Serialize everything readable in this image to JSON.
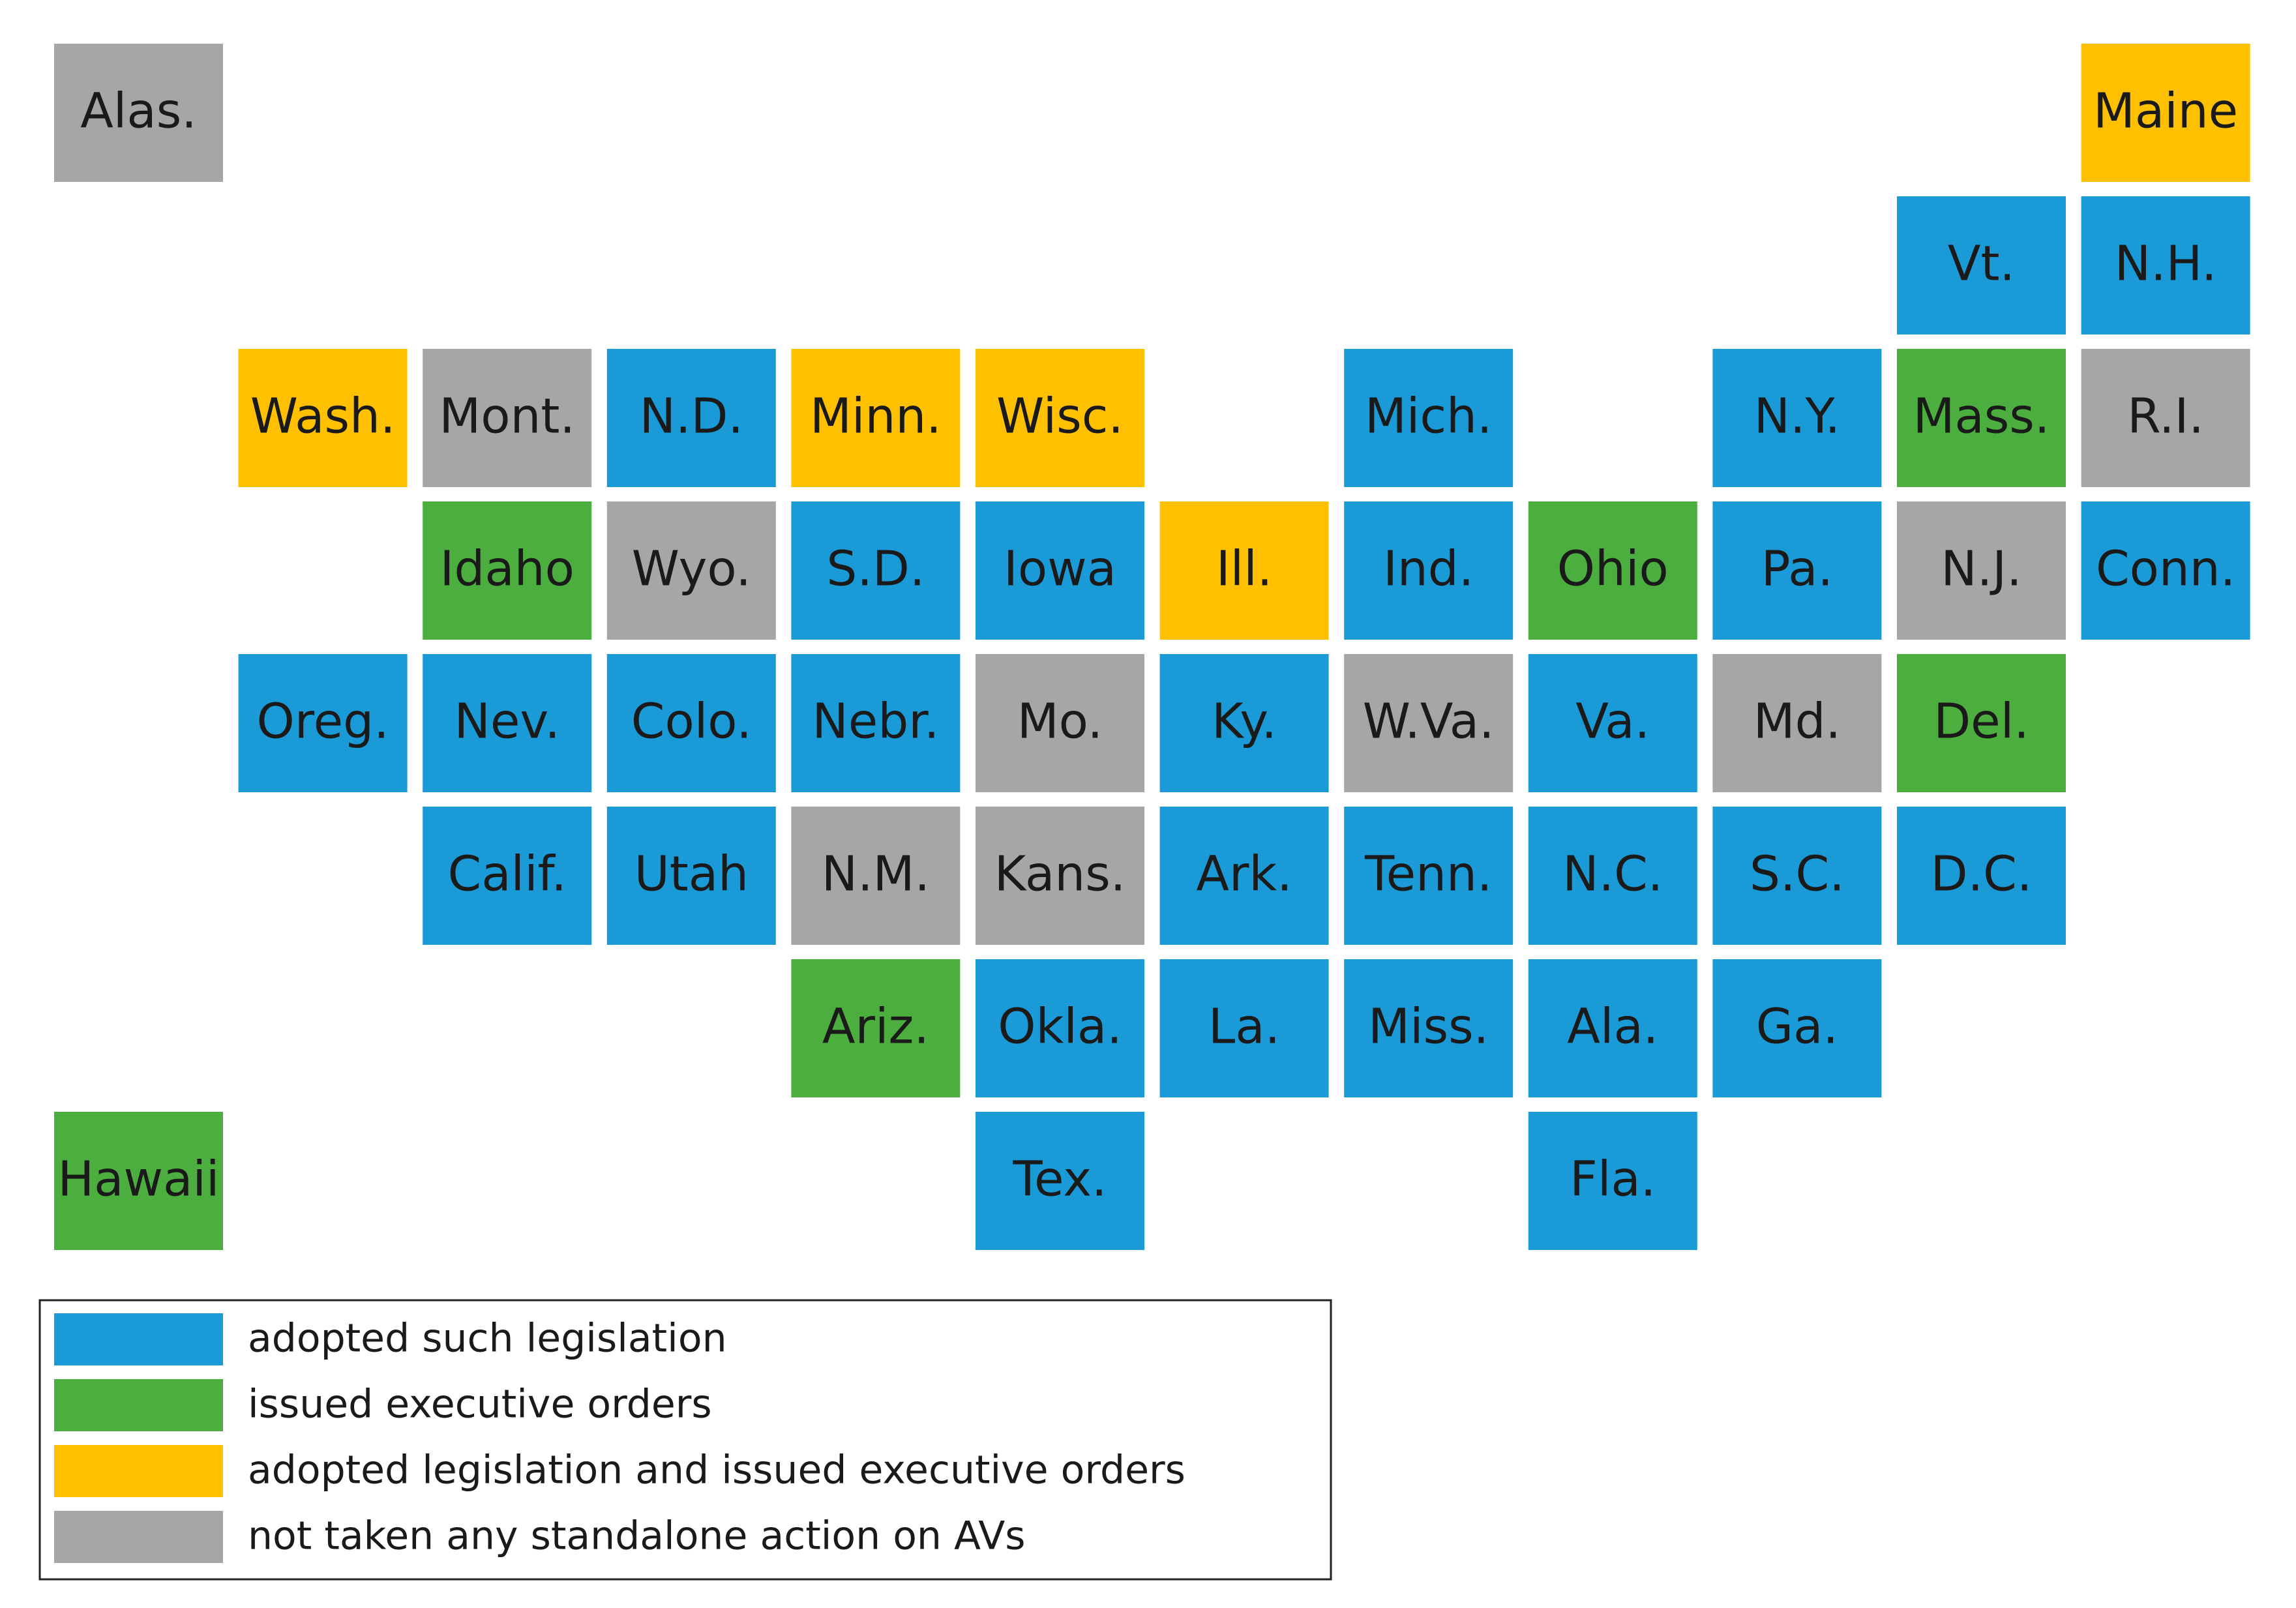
{
  "tiles": [
    {
      "label": "Alas.",
      "color": "#a6a6a6"
    },
    {
      "label": "Maine",
      "color": "#ffc000"
    },
    {
      "label": "Vt.",
      "color": "#1a9ad6"
    },
    {
      "label": "N.H.",
      "color": "#1a9ad6"
    },
    {
      "label": "Wash.",
      "color": "#ffc000"
    },
    {
      "label": "Mont.",
      "color": "#a6a6a6"
    },
    {
      "label": "N.D.",
      "color": "#1a9ad6"
    },
    {
      "label": "Minn.",
      "color": "#ffc000"
    },
    {
      "label": "Wisc.",
      "color": "#ffc000"
    },
    {
      "label": "Mich.",
      "color": "#1a9ad6"
    },
    {
      "label": "N.Y.",
      "color": "#1a9ad6"
    },
    {
      "label": "Mass.",
      "color": "#4cae3e"
    },
    {
      "label": "R.I.",
      "color": "#a6a6a6"
    },
    {
      "label": "Idaho",
      "color": "#4cae3e"
    },
    {
      "label": "Wyo.",
      "color": "#a6a6a6"
    },
    {
      "label": "S.D.",
      "color": "#1a9ad6"
    },
    {
      "label": "Iowa",
      "color": "#1a9ad6"
    },
    {
      "label": "Ill.",
      "color": "#ffc000"
    },
    {
      "label": "Ind.",
      "color": "#1a9ad6"
    },
    {
      "label": "Ohio",
      "color": "#4cae3e"
    },
    {
      "label": "Pa.",
      "color": "#1a9ad6"
    },
    {
      "label": "N.J.",
      "color": "#a6a6a6"
    },
    {
      "label": "Conn.",
      "color": "#1a9ad6"
    },
    {
      "label": "Oreg.",
      "color": "#1a9ad6"
    },
    {
      "label": "Nev.",
      "color": "#1a9ad6"
    },
    {
      "label": "Colo.",
      "color": "#1a9ad6"
    },
    {
      "label": "Nebr.",
      "color": "#1a9ad6"
    },
    {
      "label": "Mo.",
      "color": "#a6a6a6"
    },
    {
      "label": "Ky.",
      "color": "#1a9ad6"
    },
    {
      "label": "W.Va.",
      "color": "#a6a6a6"
    },
    {
      "label": "Va.",
      "color": "#1a9ad6"
    },
    {
      "label": "Md.",
      "color": "#a6a6a6"
    },
    {
      "label": "Del.",
      "color": "#4cae3e"
    },
    {
      "label": "Calif.",
      "color": "#1a9ad6"
    },
    {
      "label": "Utah",
      "color": "#1a9ad6"
    },
    {
      "label": "N.M.",
      "color": "#a6a6a6"
    },
    {
      "label": "Kans.",
      "color": "#a6a6a6"
    },
    {
      "label": "Ark.",
      "color": "#1a9ad6"
    },
    {
      "label": "Tenn.",
      "color": "#1a9ad6"
    },
    {
      "label": "N.C.",
      "color": "#1a9ad6"
    },
    {
      "label": "S.C.",
      "color": "#1a9ad6"
    },
    {
      "label": "D.C.",
      "color": "#1a9ad6"
    },
    {
      "label": "Ariz.",
      "color": "#4cae3e"
    },
    {
      "label": "Okla.",
      "color": "#1a9ad6"
    },
    {
      "label": "La.",
      "color": "#1a9ad6"
    },
    {
      "label": "Miss.",
      "color": "#1a9ad6"
    },
    {
      "label": "Ala.",
      "color": "#1a9ad6"
    },
    {
      "label": "Ga.",
      "color": "#1a9ad6"
    },
    {
      "label": "Hawaii",
      "color": "#4cae3e"
    },
    {
      "label": "Tex.",
      "color": "#1a9ad6"
    },
    {
      "label": "Fla.",
      "color": "#1a9ad6"
    }
  ],
  "legend": [
    {
      "label": "adopted such legislation",
      "color": "#1a9ad6"
    },
    {
      "label": "issued executive orders",
      "color": "#4cae3e"
    },
    {
      "label": "adopted legislation and issued executive orders",
      "color": "#ffc000"
    },
    {
      "label": "not taken any standalone action on AVs",
      "color": "#a6a6a6"
    }
  ]
}
